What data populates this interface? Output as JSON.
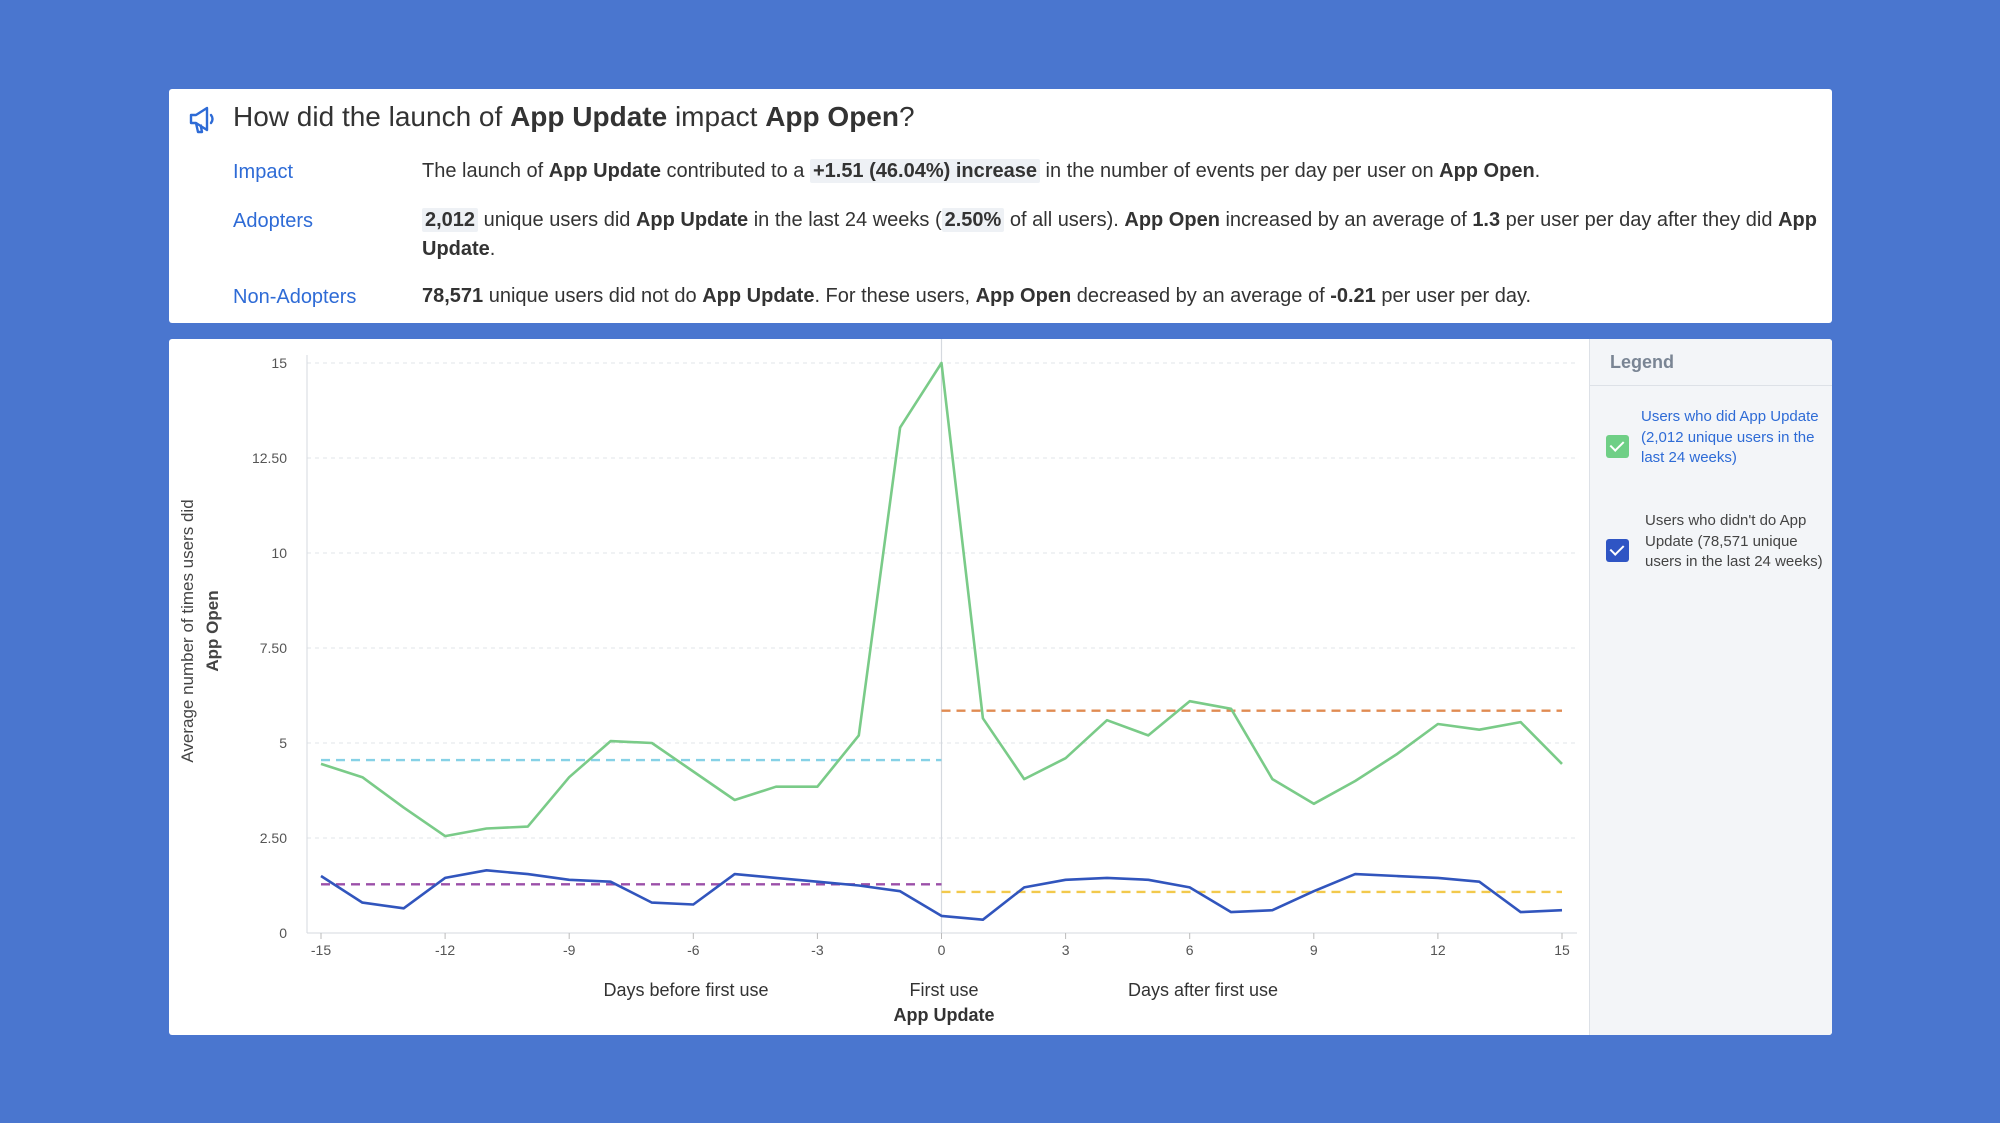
{
  "summary": {
    "title_parts": {
      "prefix": "How did the launch of ",
      "event_a": "App Update",
      "middle": " impact ",
      "event_b": "App Open",
      "suffix": "?"
    },
    "impact": {
      "label": "Impact",
      "t1": "The launch of ",
      "b1": "App Update",
      "t2": " contributed to a ",
      "h1": "+1.51 (46.04%) increase",
      "t3": " in the number of events per day per user on ",
      "b2": "App Open",
      "t4": "."
    },
    "adopters": {
      "label": "Adopters",
      "h1": "2,012",
      "t1": " unique users did ",
      "b1": "App Update",
      "t2": " in the last 24 weeks (",
      "h2": "2.50%",
      "t3": " of all users). ",
      "b2": "App Open",
      "t4": " increased by an average of ",
      "b3": "1.3",
      "t5": " per user per day after they did ",
      "b4": "App Update",
      "t6": "."
    },
    "non_adopters": {
      "label": "Non-Adopters",
      "b1": "78,571",
      "t1": " unique users did not do ",
      "b2": "App Update",
      "t2": ". For these users, ",
      "b3": "App Open",
      "t3": " decreased by an average of ",
      "b4": "-0.21",
      "t4": " per user per day."
    }
  },
  "legend": {
    "header": "Legend",
    "items": [
      {
        "label": "Users who did App Update (2,012 unique users in the last 24 weeks)",
        "color": "#6fcf86",
        "checked": true
      },
      {
        "label": "Users who didn't do App Update (78,571 unique users in the last 24 weeks)",
        "color": "#2f55c4",
        "checked": true
      }
    ]
  },
  "chart_data": {
    "type": "line",
    "ylabel_line1": "Average number of times users did",
    "ylabel_line2": "App Open",
    "xlabel_left": "Days before first use",
    "xlabel_center": "First use",
    "xlabel_right": "Days after first use",
    "xlabel_event": "App Update",
    "ylim": [
      0,
      15
    ],
    "yticks": [
      0,
      2.5,
      5,
      7.5,
      10,
      12.5,
      15
    ],
    "ytick_labels": [
      "0",
      "2.50",
      "5",
      "7.50",
      "10",
      "12.50",
      "15"
    ],
    "xlim": [
      -15,
      15
    ],
    "xticks": [
      -15,
      -12,
      -9,
      -6,
      -3,
      0,
      3,
      6,
      9,
      12,
      15
    ],
    "grid": true,
    "series": [
      {
        "color": "#7acb88",
        "x": [
          -15,
          -14,
          -13,
          -12,
          -11,
          -10,
          -9,
          -8,
          -7,
          -6,
          -5,
          -4,
          -3,
          -2,
          -1,
          0,
          1,
          2,
          3,
          4,
          5,
          6,
          7,
          8,
          9,
          10,
          11,
          12,
          13,
          14,
          15
        ],
        "values": [
          4.45,
          4.1,
          3.3,
          2.55,
          2.75,
          2.8,
          4.1,
          5.05,
          5.0,
          4.25,
          3.5,
          3.85,
          3.85,
          5.2,
          13.3,
          15.0,
          5.65,
          4.05,
          4.6,
          5.6,
          5.2,
          6.1,
          5.9,
          4.05,
          3.4,
          4.0,
          4.7,
          5.5,
          5.35,
          5.55,
          4.45
        ]
      },
      {
        "color": "#3155bd",
        "x": [
          -15,
          -14,
          -13,
          -12,
          -11,
          -10,
          -9,
          -8,
          -7,
          -6,
          -5,
          -4,
          -3,
          -2,
          -1,
          0,
          1,
          2,
          3,
          4,
          5,
          6,
          7,
          8,
          9,
          10,
          11,
          12,
          13,
          14,
          15
        ],
        "values": [
          1.5,
          0.8,
          0.65,
          1.45,
          1.65,
          1.55,
          1.4,
          1.35,
          0.8,
          0.75,
          1.55,
          1.45,
          1.35,
          1.25,
          1.1,
          0.45,
          0.35,
          1.2,
          1.4,
          1.45,
          1.4,
          1.2,
          0.55,
          0.6,
          1.1,
          1.55,
          1.5,
          1.45,
          1.35,
          0.55,
          0.6
        ]
      }
    ],
    "averages": [
      {
        "x": [
          -15,
          0
        ],
        "y": 4.55,
        "color": "#86d1e6"
      },
      {
        "x": [
          0,
          15
        ],
        "y": 5.85,
        "color": "#e08b52"
      },
      {
        "x": [
          -15,
          0
        ],
        "y": 1.28,
        "color": "#9b4fa8"
      },
      {
        "x": [
          0,
          15
        ],
        "y": 1.08,
        "color": "#f2c94c"
      }
    ]
  }
}
